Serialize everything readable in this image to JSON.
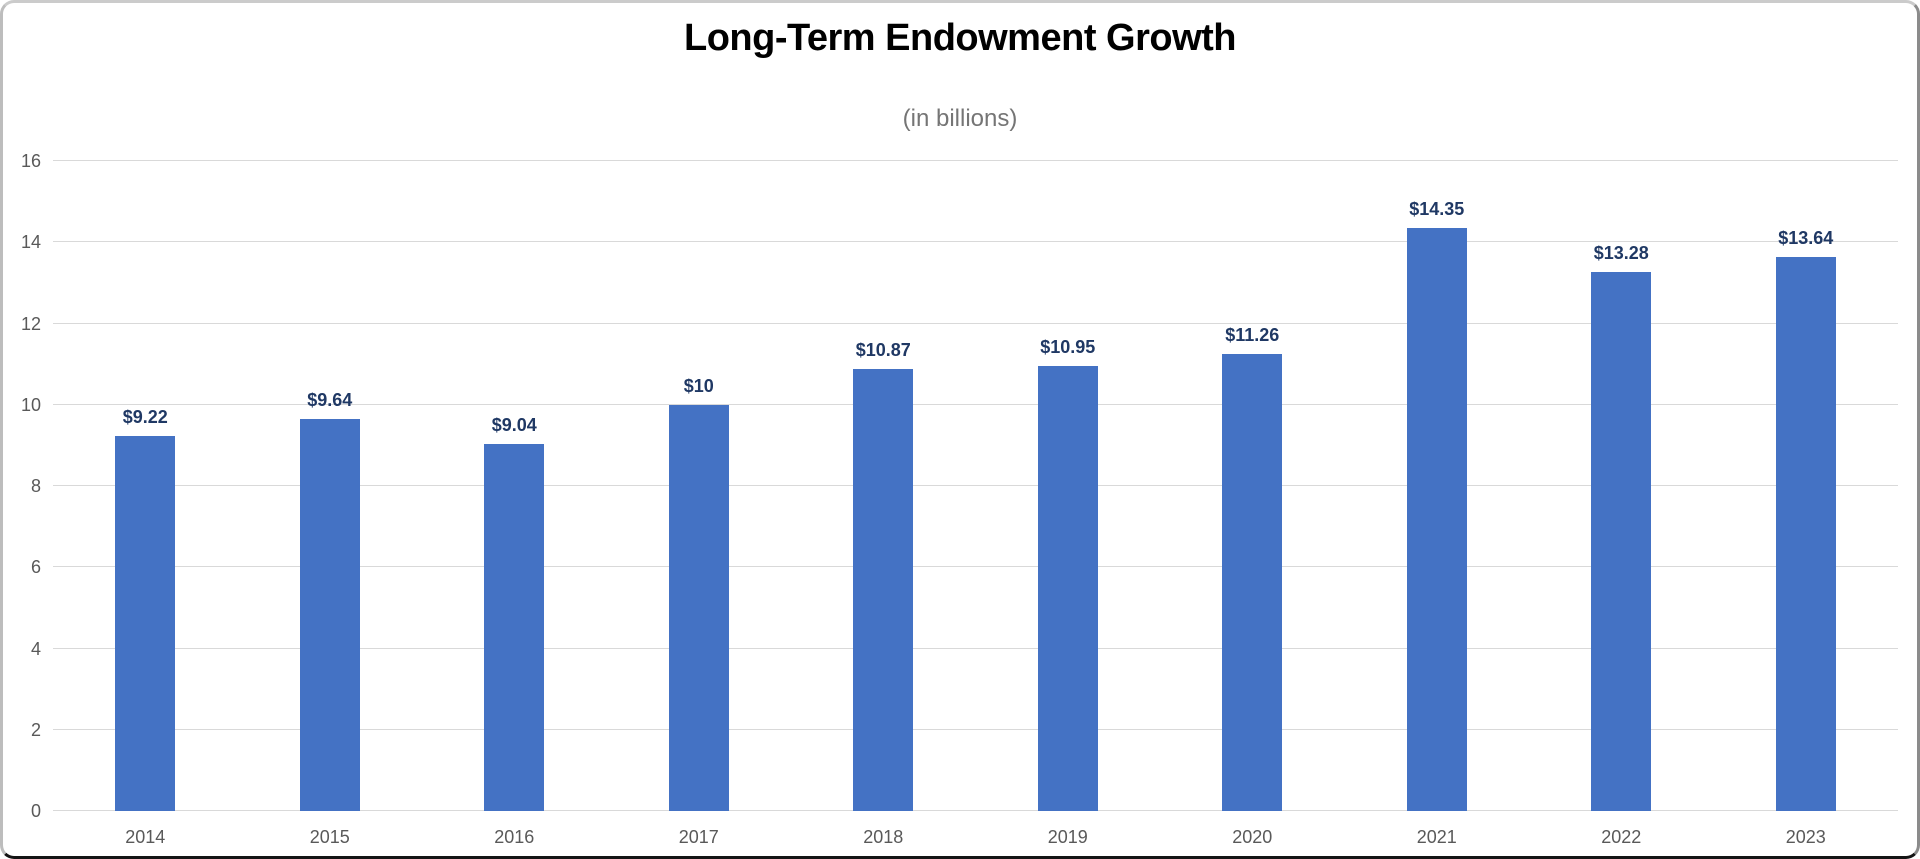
{
  "chart_data": {
    "type": "bar",
    "title": "Long-Term Endowment Growth",
    "subtitle": "(in billions)",
    "categories": [
      "2014",
      "2015",
      "2016",
      "2017",
      "2018",
      "2019",
      "2020",
      "2021",
      "2022",
      "2023"
    ],
    "values": [
      9.22,
      9.64,
      9.04,
      10,
      10.87,
      10.95,
      11.26,
      14.35,
      13.28,
      13.64
    ],
    "data_labels": [
      "$9.22",
      "$9.64",
      "$9.04",
      "$10",
      "$10.87",
      "$10.95",
      "$11.26",
      "$14.35",
      "$13.28",
      "$13.64"
    ],
    "xlabel": "",
    "ylabel": "",
    "ylim": [
      0,
      16
    ],
    "yticks": [
      0,
      2,
      4,
      6,
      8,
      10,
      12,
      14,
      16
    ],
    "grid": true,
    "legend": "none",
    "colors": {
      "bar": "#4472C4",
      "data_label": "#1F3864",
      "axis_label": "#595959",
      "gridline": "#D9D9D9",
      "title": "#000000",
      "subtitle": "#757575"
    }
  }
}
